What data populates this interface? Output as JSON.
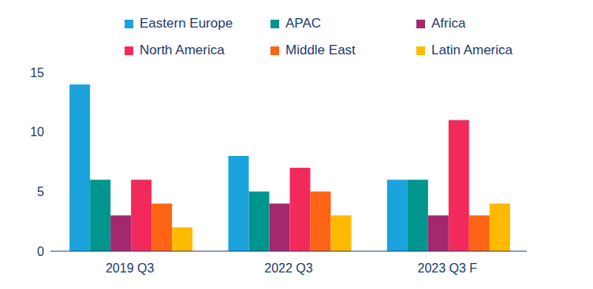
{
  "chart_data": {
    "type": "bar",
    "categories": [
      "2019 Q3",
      "2022 Q3",
      "2023 Q3 F"
    ],
    "series": [
      {
        "name": "Eastern Europe",
        "color": "#1aa3dc",
        "values": [
          14,
          8,
          6
        ]
      },
      {
        "name": "APAC",
        "color": "#00968f",
        "values": [
          6,
          5,
          6
        ]
      },
      {
        "name": "Africa",
        "color": "#a3286e",
        "values": [
          3,
          4,
          3
        ]
      },
      {
        "name": "North America",
        "color": "#f22a5c",
        "values": [
          6,
          7,
          11
        ]
      },
      {
        "name": "Middle East",
        "color": "#ff6414",
        "values": [
          4,
          5,
          3
        ]
      },
      {
        "name": "Latin America",
        "color": "#ffb900",
        "values": [
          2,
          3,
          4
        ]
      }
    ],
    "ylim": [
      0,
      15
    ],
    "yticks": [
      0,
      5,
      10,
      15
    ],
    "grid": false,
    "legend": "top"
  }
}
